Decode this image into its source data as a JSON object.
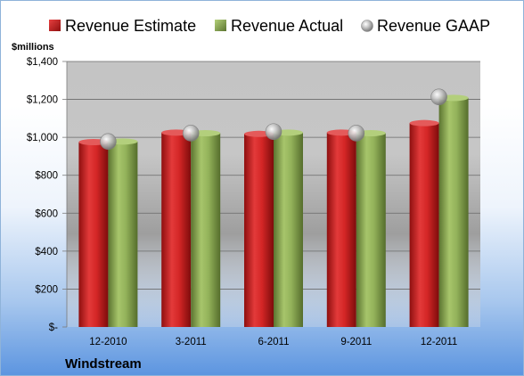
{
  "chart_data": {
    "type": "bar",
    "title": "",
    "company": "Windstream",
    "ylabel": "$millions",
    "xlabel": "",
    "categories": [
      "12-2010",
      "3-2011",
      "6-2011",
      "9-2011",
      "12-2011"
    ],
    "series": [
      {
        "name": "Revenue Estimate",
        "kind": "bar",
        "color": "#cc1f1f",
        "values": [
          975,
          1025,
          1018,
          1025,
          1075
        ]
      },
      {
        "name": "Revenue Actual",
        "kind": "bar",
        "color": "#8aaa50",
        "values": [
          978,
          1022,
          1025,
          1022,
          1208
        ]
      },
      {
        "name": "Revenue GAAP",
        "kind": "marker",
        "color": "#b0b0b0",
        "values": [
          978,
          1022,
          1030,
          1022,
          1213
        ]
      }
    ],
    "ylim": [
      0,
      1400
    ],
    "yticks": [
      0,
      200,
      400,
      600,
      800,
      1000,
      1200,
      1400
    ],
    "ytick_labels": [
      "$-",
      "$200",
      "$400",
      "$600",
      "$800",
      "$1,000",
      "$1,200",
      "$1,400"
    ],
    "grid": true,
    "legend_position": "top"
  }
}
